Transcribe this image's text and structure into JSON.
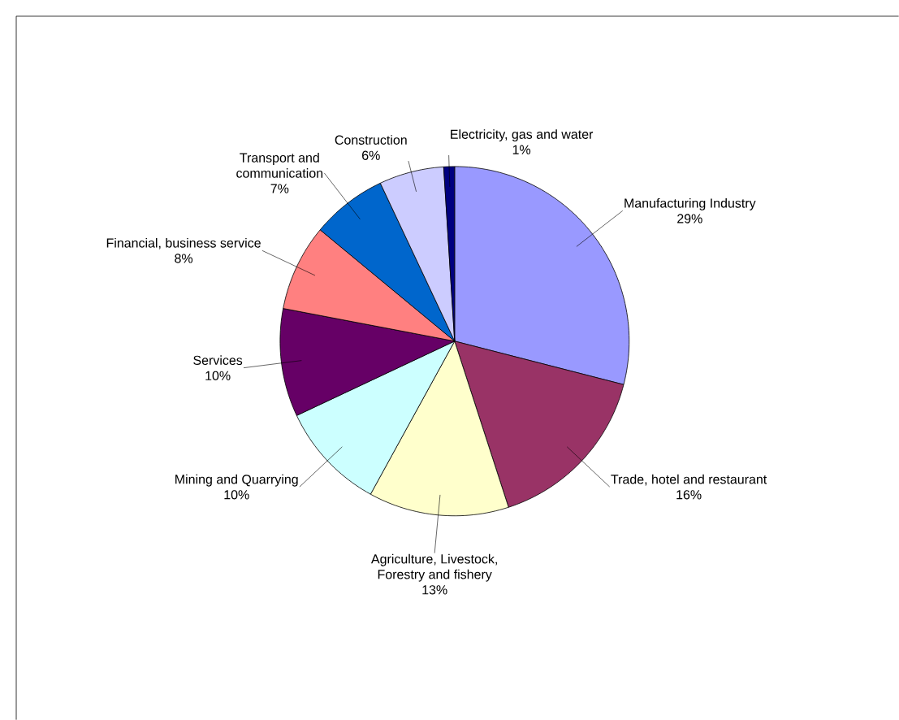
{
  "chart_data": {
    "type": "pie",
    "categories": [
      "Manufacturing Industry",
      "Trade, hotel and restaurant",
      "Agriculture, Livestock, Forestry and fishery",
      "Mining and Quarrying",
      "Services",
      "Financial, business service",
      "Transport and communication",
      "Construction",
      "Electricity, gas and water"
    ],
    "values": [
      29,
      16,
      13,
      10,
      10,
      8,
      7,
      6,
      1
    ],
    "value_labels": [
      "29%",
      "16%",
      "13%",
      "10%",
      "10%",
      "8%",
      "7%",
      "6%",
      "1%"
    ],
    "colors": [
      "#9999ff",
      "#993366",
      "#ffffcc",
      "#ccffff",
      "#660066",
      "#ff8080",
      "#0066cc",
      "#ccccff",
      "#000080"
    ]
  }
}
